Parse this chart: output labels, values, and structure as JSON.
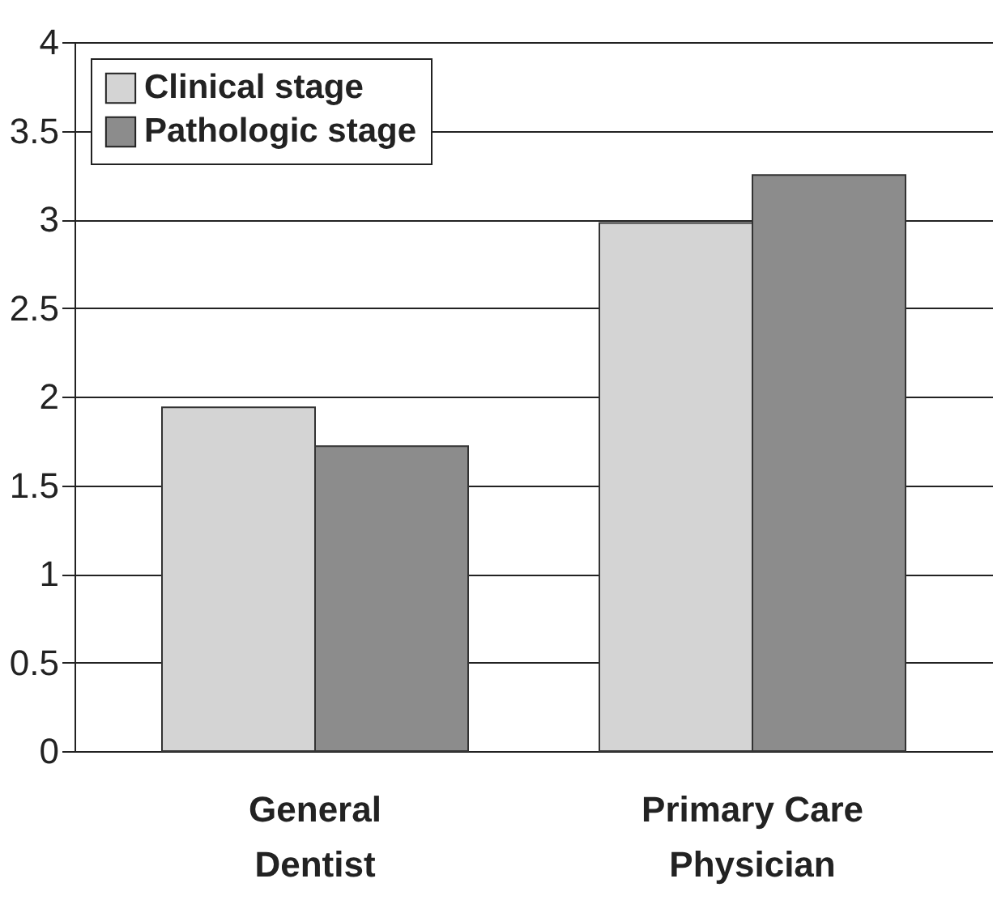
{
  "chart_data": {
    "type": "bar",
    "categories": [
      "General Dentist",
      "Primary Care Physician"
    ],
    "series": [
      {
        "name": "Clinical stage",
        "color": "#d4d4d4",
        "values": [
          1.94,
          2.98
        ]
      },
      {
        "name": "Pathologic stage",
        "color": "#8c8c8c",
        "values": [
          1.72,
          3.25
        ]
      }
    ],
    "ylim": [
      0,
      4
    ],
    "yticks": [
      0,
      0.5,
      1,
      1.5,
      2,
      2.5,
      3,
      3.5,
      4
    ],
    "grid": "y",
    "legend": "top left"
  }
}
